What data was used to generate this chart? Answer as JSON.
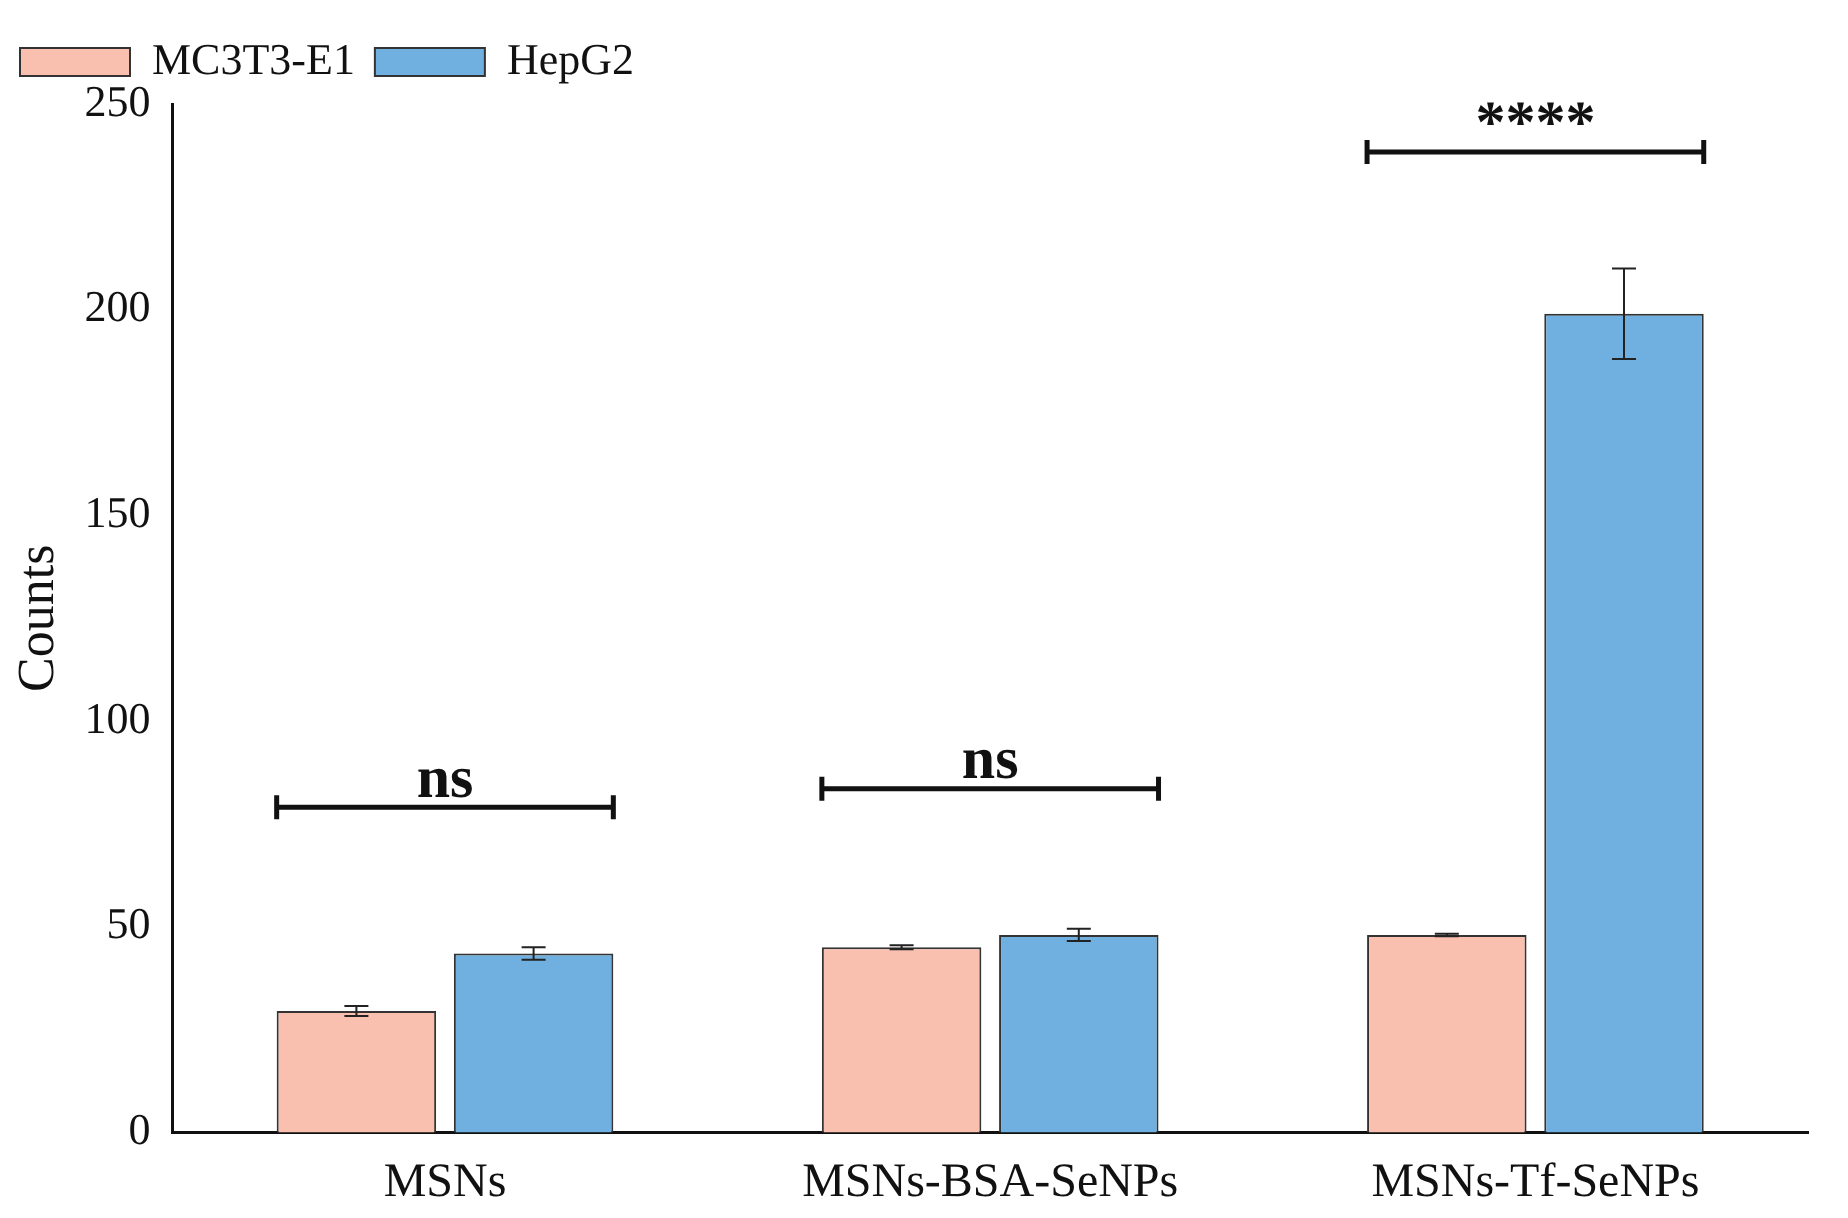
{
  "chart_data": {
    "type": "bar",
    "ylabel": "Counts",
    "categories": [
      "MSNs",
      "MSNs-BSA-SeNPs",
      "MSNs-Tf-SeNPs"
    ],
    "series": [
      {
        "name": "MC3T3-E1",
        "color": "#f9c0b0",
        "values": [
          29.5,
          45,
          48
        ],
        "errors": [
          1.2,
          0.5,
          0.3
        ]
      },
      {
        "name": "HepG2",
        "color": "#70b0e0",
        "values": [
          43.5,
          48,
          199
        ],
        "errors": [
          1.5,
          1.5,
          11
        ]
      }
    ],
    "ylim": [
      0,
      250
    ],
    "yticks": [
      0,
      50,
      100,
      150,
      200,
      250
    ],
    "grid": false,
    "legend": "top left",
    "annotations": [
      "ns",
      "ns",
      "****"
    ]
  }
}
